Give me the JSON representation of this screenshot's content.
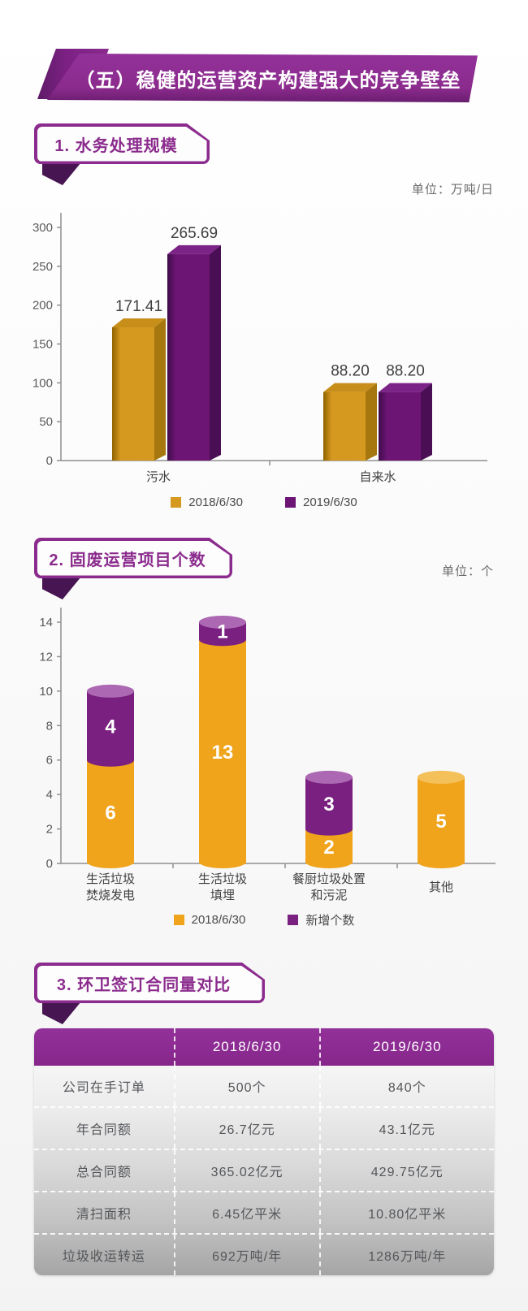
{
  "banner": {
    "title": "（五）稳健的运营资产构建强大的竞争壁垒"
  },
  "sections": [
    {
      "badge": "1. 水务处理规模",
      "unit": "单位：万吨/日"
    },
    {
      "badge": "2. 固废运营项目个数",
      "unit": "单位：个"
    },
    {
      "badge": "3. 环卫签订合同量对比"
    }
  ],
  "colors": {
    "brand_purple": "#8b2b8d",
    "fold_purple": "#471551",
    "gold_front": "#d6991f",
    "gold_side": "#a5770e",
    "gold_top": "#c78e1a",
    "purple_front": "#6c1574",
    "purple_side": "#4a0e55",
    "purple_top": "#7c2388",
    "cyl_gold": "#f0a41c",
    "cyl_gold_cap": "#f4c05a",
    "cyl_purple": "#7a2080",
    "cyl_purple_cap": "#ac68b2",
    "header_text": "#ffffff",
    "body_text": "#54565a"
  },
  "chart_data": [
    {
      "type": "bar",
      "style": "3d-grouped-column",
      "title": "1. 水务处理规模",
      "unit": "万吨/日",
      "categories": [
        "污水",
        "自来水"
      ],
      "series": [
        {
          "name": "2018/6/30",
          "values": [
            171.41,
            88.2
          ]
        },
        {
          "name": "2019/6/30",
          "values": [
            265.69,
            88.2
          ]
        }
      ],
      "value_labels": [
        [
          "171.41",
          "88.20"
        ],
        [
          "265.69",
          "88.20"
        ]
      ],
      "ylim": [
        0,
        300
      ],
      "ytick_step": 50,
      "grid": false,
      "legend_position": "bottom"
    },
    {
      "type": "bar",
      "style": "stacked-cylinder",
      "title": "2. 固废运营项目个数",
      "unit": "个",
      "categories": [
        "生活垃圾焚烧发电",
        "生活垃圾填埋",
        "餐厨垃圾处置和污泥",
        "其他"
      ],
      "category_lines": [
        [
          "生活垃圾",
          "焚烧发电"
        ],
        [
          "生活垃圾",
          "填埋"
        ],
        [
          "餐厨垃圾处置",
          "和污泥"
        ],
        [
          "其他"
        ]
      ],
      "series": [
        {
          "name": "2018/6/30",
          "values": [
            6,
            13,
            2,
            5
          ]
        },
        {
          "name": "新增个数",
          "values": [
            4,
            1,
            3,
            0
          ]
        }
      ],
      "ylim": [
        0,
        14
      ],
      "ytick_step": 2,
      "grid": false,
      "legend_position": "bottom"
    },
    {
      "type": "table",
      "title": "3. 环卫签订合同量对比",
      "header": [
        "",
        "2018/6/30",
        "2019/6/30"
      ],
      "rows": [
        [
          "公司在手订单",
          "500个",
          "840个"
        ],
        [
          "年合同额",
          "26.7亿元",
          "43.1亿元"
        ],
        [
          "总合同额",
          "365.02亿元",
          "429.75亿元"
        ],
        [
          "清扫面积",
          "6.45亿平米",
          "10.80亿平米"
        ],
        [
          "垃圾收运转运",
          "692万吨/年",
          "1286万吨/年"
        ]
      ]
    }
  ]
}
